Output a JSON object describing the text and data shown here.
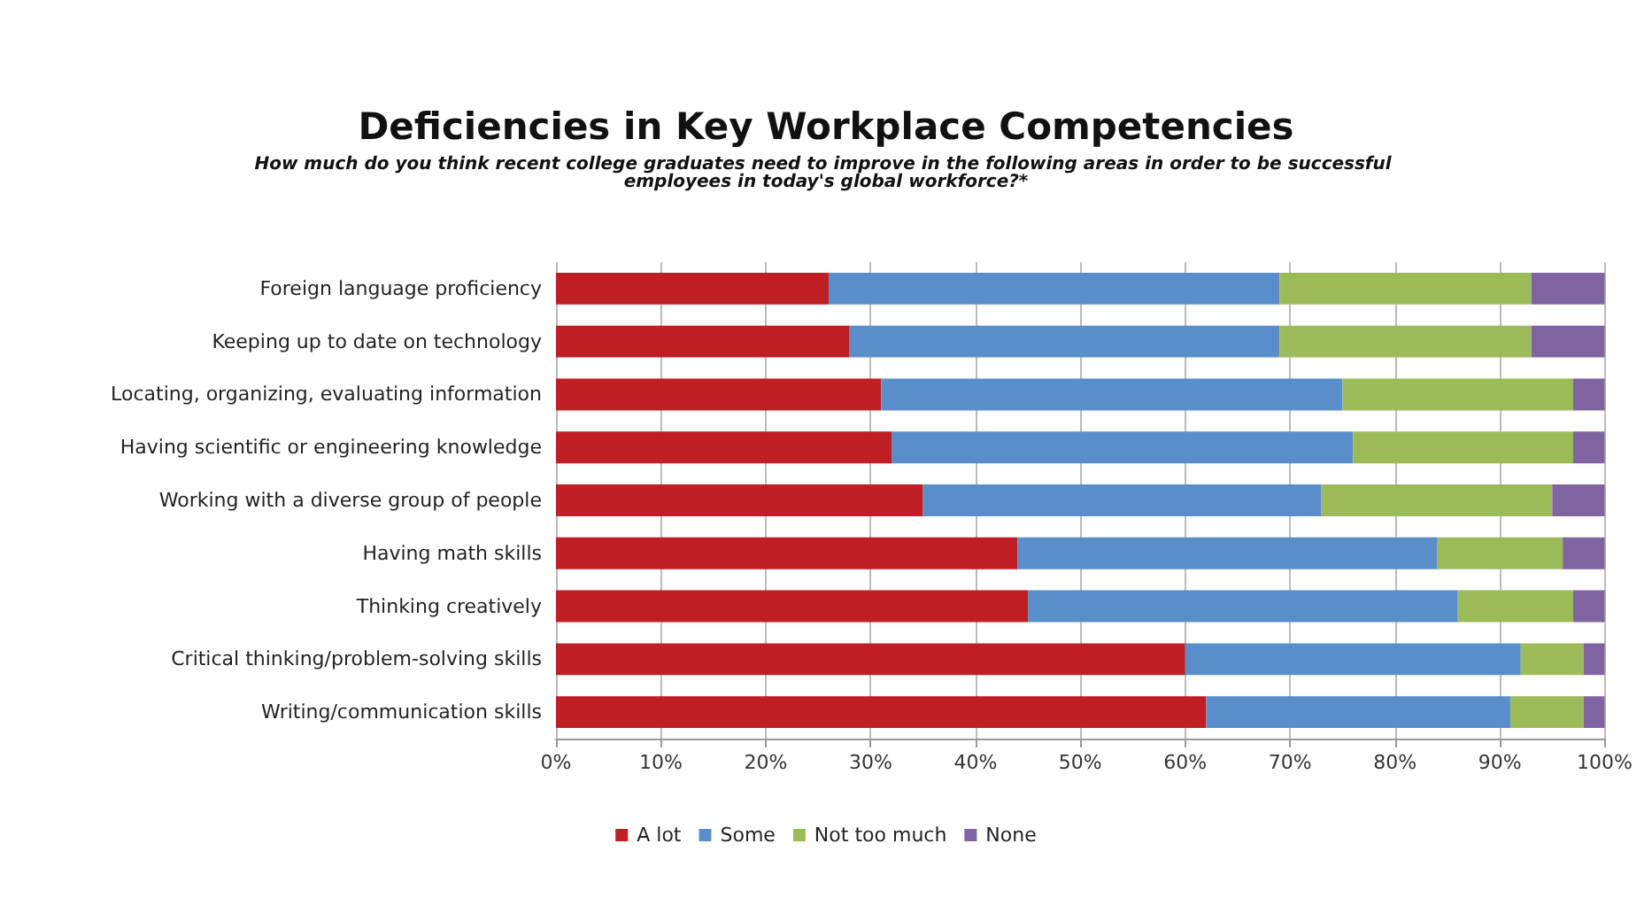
{
  "chart_data": {
    "type": "bar",
    "orientation": "horizontal",
    "stacked": true,
    "title": "Deficiencies in Key Workplace Competencies",
    "subtitle": "How much do you think recent college graduates need to improve in the following areas in order to be successful employees in today's global workforce?*",
    "categories": [
      "Foreign language proficiency",
      "Keeping up to date on technology",
      "Locating, organizing, evaluating information",
      "Having scientific or engineering knowledge",
      "Working with a diverse group of people",
      "Having math skills",
      "Thinking creatively",
      "Critical thinking/problem-solving skills",
      "Writing/communication skills"
    ],
    "series": [
      {
        "name": "A lot",
        "color": "#be1e24",
        "values": [
          26,
          28,
          31,
          32,
          35,
          44,
          45,
          60,
          62
        ]
      },
      {
        "name": "Some",
        "color": "#5a8ecb",
        "values": [
          43,
          41,
          44,
          44,
          38,
          40,
          41,
          32,
          29
        ]
      },
      {
        "name": "Not too much",
        "color": "#9bbb59",
        "values": [
          24,
          24,
          22,
          21,
          22,
          12,
          11,
          6,
          7
        ]
      },
      {
        "name": "None",
        "color": "#8064a2",
        "values": [
          7,
          7,
          3,
          3,
          5,
          4,
          3,
          2,
          2
        ]
      }
    ],
    "xlim": [
      0,
      100
    ],
    "xticks": [
      {
        "value": 0,
        "label": "0%"
      },
      {
        "value": 10,
        "label": "10%"
      },
      {
        "value": 20,
        "label": "20%"
      },
      {
        "value": 30,
        "label": "30%"
      },
      {
        "value": 40,
        "label": "40%"
      },
      {
        "value": 50,
        "label": "50%"
      },
      {
        "value": 60,
        "label": "60%"
      },
      {
        "value": 70,
        "label": "70%"
      },
      {
        "value": 80,
        "label": "80%"
      },
      {
        "value": 90,
        "label": "90%"
      },
      {
        "value": 100,
        "label": "100%"
      }
    ],
    "grid": "x",
    "legend": "bottom"
  }
}
